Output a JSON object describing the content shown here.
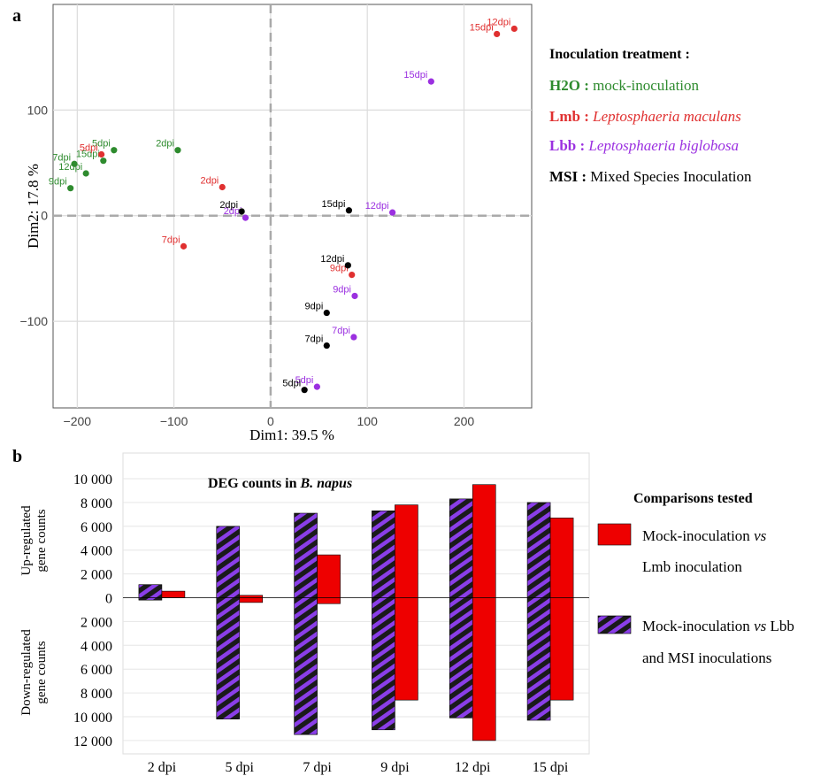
{
  "panel_a_letter": "a",
  "panel_b_letter": "b",
  "colors": {
    "h2o": "#2e8b2e",
    "lmb": "#e03030",
    "lbb": "#9b30e0",
    "msi": "#000000",
    "bar_red": "#ee0000",
    "stripe_purple": "#8a3ee8",
    "stripe_dark": "#1a1a1a"
  },
  "legend_a": {
    "title": "Inoculation treatment :",
    "entries": [
      {
        "key": "H2O :",
        "desc": "mock-inoculation",
        "italic": false,
        "group": "h2o"
      },
      {
        "key": "Lmb :",
        "desc": "Leptosphaeria maculans",
        "italic": true,
        "group": "lmb"
      },
      {
        "key": "Lbb :",
        "desc": "Leptosphaeria biglobosa",
        "italic": true,
        "group": "lbb"
      },
      {
        "key": "MSI :",
        "desc": "Mixed Species Inoculation",
        "italic": false,
        "group": "msi"
      }
    ]
  },
  "legend_b": {
    "title": "Comparisons tested",
    "entries": [
      {
        "line1": "Mock-inoculation ",
        "vs": "vs",
        "line1b": "",
        "line2": "Lmb inoculation"
      },
      {
        "line1": "Mock-inoculation ",
        "vs": "vs",
        "line1b": " Lbb",
        "line2": "and MSI inoculations"
      }
    ]
  },
  "chart_data": [
    {
      "type": "scatter",
      "title": "",
      "xlabel": "Dim1: 39.5 %",
      "ylabel": "Dim2: 17.8 %",
      "xlim": [
        -225,
        270
      ],
      "ylim": [
        -182,
        200
      ],
      "xticks": [
        -200,
        -100,
        0,
        100,
        200
      ],
      "yticks": [
        -100,
        0,
        100
      ],
      "xtick_labels": [
        "−200",
        "−100",
        "0",
        "100",
        "200"
      ],
      "ytick_labels": [
        "−100",
        "0",
        "100"
      ],
      "grid": true,
      "series": [
        {
          "name": "H2O",
          "group": "h2o",
          "points": [
            {
              "label": "5dpi",
              "x": -162,
              "y": 62
            },
            {
              "label": "2dpi",
              "x": -96,
              "y": 62
            },
            {
              "label": "15dpi",
              "x": -173,
              "y": 52
            },
            {
              "label": "7dpi",
              "x": -203,
              "y": 49
            },
            {
              "label": "12dpi",
              "x": -191,
              "y": 40
            },
            {
              "label": "9dpi",
              "x": -207,
              "y": 26
            }
          ]
        },
        {
          "name": "Lmb",
          "group": "lmb",
          "points": [
            {
              "label": "12dpi",
              "x": 252,
              "y": 177
            },
            {
              "label": "15dpi",
              "x": 234,
              "y": 172
            },
            {
              "label": "5dpi",
              "x": -175,
              "y": 58
            },
            {
              "label": "2dpi",
              "x": -50,
              "y": 27
            },
            {
              "label": "7dpi",
              "x": -90,
              "y": -29
            },
            {
              "label": "9dpi",
              "x": 84,
              "y": -56
            }
          ]
        },
        {
          "name": "Lbb",
          "group": "lbb",
          "points": [
            {
              "label": "15dpi",
              "x": 166,
              "y": 127
            },
            {
              "label": "12dpi",
              "x": 126,
              "y": 3
            },
            {
              "label": "2dpi",
              "x": -26,
              "y": -2
            },
            {
              "label": "9dpi",
              "x": 87,
              "y": -76
            },
            {
              "label": "7dpi",
              "x": 86,
              "y": -115
            },
            {
              "label": "5dpi",
              "x": 48,
              "y": -162
            }
          ]
        },
        {
          "name": "MSI",
          "group": "msi",
          "points": [
            {
              "label": "15dpi",
              "x": 81,
              "y": 5
            },
            {
              "label": "2dpi",
              "x": -30,
              "y": 4
            },
            {
              "label": "12dpi",
              "x": 80,
              "y": -47
            },
            {
              "label": "9dpi",
              "x": 58,
              "y": -92
            },
            {
              "label": "7dpi",
              "x": 58,
              "y": -123
            },
            {
              "label": "5dpi",
              "x": 35,
              "y": -165
            }
          ]
        }
      ]
    },
    {
      "type": "bar",
      "title_prefix": "DEG counts in ",
      "title_italic": "B. napus",
      "ylabel_up": [
        "Up-regulated",
        "gene counts"
      ],
      "ylabel_down": [
        "Down-regulated",
        "gene counts"
      ],
      "ylim": [
        -12000,
        10000
      ],
      "yticks": [
        10000,
        8000,
        6000,
        4000,
        2000,
        0,
        -2000,
        -4000,
        -6000,
        -8000,
        -10000,
        -12000
      ],
      "ytick_labels": [
        "10 000",
        "8 000",
        "6 000",
        "4 000",
        "2 000",
        "0",
        "2 000",
        "4 000",
        "6 000",
        "8 000",
        "10 000",
        "12 000"
      ],
      "categories": [
        "2 dpi",
        "5 dpi",
        "7 dpi",
        "9 dpi",
        "12 dpi",
        "15 dpi"
      ],
      "grid": true,
      "series": [
        {
          "name": "Mock-inoculation vs Lbb and MSI inoculations",
          "pattern": "striped",
          "up": [
            1100,
            6000,
            7100,
            7300,
            8300,
            8000
          ],
          "down": [
            200,
            10200,
            11500,
            11100,
            10100,
            10300
          ]
        },
        {
          "name": "Mock-inoculation vs Lmb inoculation",
          "pattern": "solid",
          "up": [
            550,
            200,
            3600,
            7800,
            9500,
            6700
          ],
          "down": [
            0,
            400,
            500,
            8600,
            12000,
            8600
          ]
        }
      ]
    }
  ]
}
